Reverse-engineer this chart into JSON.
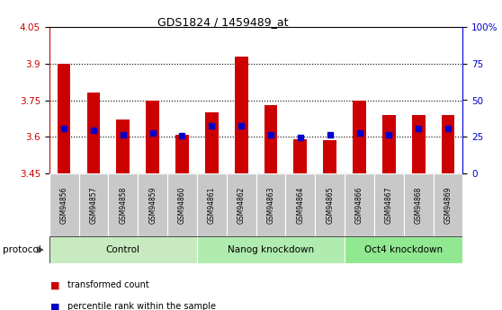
{
  "title": "GDS1824 / 1459489_at",
  "samples": [
    "GSM94856",
    "GSM94857",
    "GSM94858",
    "GSM94859",
    "GSM94860",
    "GSM94861",
    "GSM94862",
    "GSM94863",
    "GSM94864",
    "GSM94865",
    "GSM94866",
    "GSM94867",
    "GSM94868",
    "GSM94869"
  ],
  "bar_values": [
    3.9,
    3.78,
    3.67,
    3.75,
    3.61,
    3.7,
    3.93,
    3.73,
    3.59,
    3.585,
    3.75,
    3.69,
    3.69,
    3.69
  ],
  "bar_bottom": 3.45,
  "percentile_values": [
    3.635,
    3.625,
    3.61,
    3.615,
    3.605,
    3.645,
    3.645,
    3.61,
    3.596,
    3.608,
    3.615,
    3.608,
    3.635,
    3.635
  ],
  "ymin": 3.45,
  "ymax": 4.05,
  "yticks": [
    3.45,
    3.6,
    3.75,
    3.9,
    4.05
  ],
  "ytick_labels": [
    "3.45",
    "3.6",
    "3.75",
    "3.9",
    "4.05"
  ],
  "yticks_right": [
    0,
    25,
    50,
    75,
    100
  ],
  "yticks_right_labels": [
    "0",
    "25",
    "50",
    "75",
    "100%"
  ],
  "groups": [
    {
      "label": "Control",
      "start": 0,
      "end": 5,
      "color": "#c8eac0"
    },
    {
      "label": "Nanog knockdown",
      "start": 5,
      "end": 10,
      "color": "#b0ecb0"
    },
    {
      "label": "Oct4 knockdown",
      "start": 10,
      "end": 14,
      "color": "#90e890"
    }
  ],
  "bar_color": "#cc0000",
  "marker_color": "#0000cc",
  "sample_bg": "#c8c8c8",
  "plot_bg": "#ffffff",
  "tick_color_left": "#cc0000",
  "tick_color_right": "#0000cc",
  "protocol_label": "protocol",
  "legend_items": [
    "transformed count",
    "percentile rank within the sample"
  ]
}
